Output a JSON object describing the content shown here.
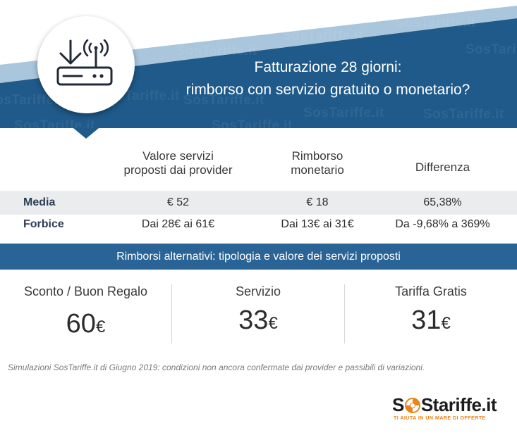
{
  "header": {
    "title_line1": "Fatturazione 28 giorni:",
    "title_line2": "rimborso con servizio gratuito o monetario?",
    "watermark_text": "SosTariffe.it",
    "icon": "router-download-icon",
    "colors": {
      "banner_dark": "#1f5a8a",
      "stripe_light": "#a9c6dd"
    }
  },
  "table": {
    "columns": [
      {
        "line1": "Valore servizi",
        "line2": "proposti dai provider"
      },
      {
        "line1": "Rimborso",
        "line2": "monetario"
      },
      {
        "line1": "Differenza",
        "line2": ""
      }
    ],
    "rows": [
      {
        "label": "Media",
        "values": [
          "€ 52",
          "€ 18",
          "65,38%"
        ]
      },
      {
        "label": "Forbice",
        "values": [
          "Dai 28€ ai 61€",
          "Dai 13€ ai 31€",
          "Da -9,68% a 369%"
        ]
      }
    ]
  },
  "banner": {
    "text": "Rimborsi alternativi: tipologia e valore dei servizi proposti",
    "color": "#2a6496"
  },
  "alternatives": [
    {
      "name": "Sconto / Buon Regalo",
      "amount": "60",
      "currency": "€"
    },
    {
      "name": "Servizio",
      "amount": "33",
      "currency": "€"
    },
    {
      "name": "Tariffa Gratis",
      "amount": "31",
      "currency": "€"
    }
  ],
  "footer": {
    "note": "Simulazioni SosTariffe.it di Giugno 2019: condizioni non ancora confermate dai provider e passibili di variazioni.",
    "logo": {
      "prefix": "S",
      "suffix": "Stariffe.it",
      "tagline": "TI AIUTA IN UN MARE DI OFFERTE",
      "accent": "#e8841c"
    }
  }
}
